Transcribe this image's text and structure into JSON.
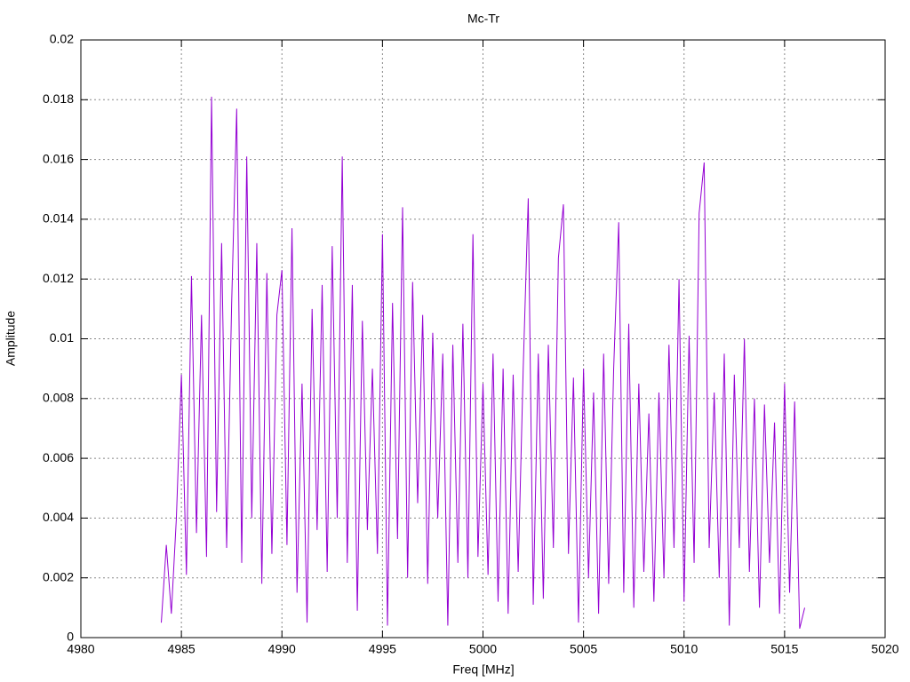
{
  "chart_data": {
    "type": "line",
    "title": "Mc-Tr",
    "x_label": "Freq [MHz]",
    "y_label": "Amplitude",
    "x": [
      4984.0,
      4984.25,
      4984.5,
      4984.75,
      4985.0,
      4985.25,
      4985.5,
      4985.75,
      4986.0,
      4986.25,
      4986.5,
      4986.75,
      4987.0,
      4987.25,
      4987.5,
      4987.75,
      4988.0,
      4988.25,
      4988.5,
      4988.75,
      4989.0,
      4989.25,
      4989.5,
      4989.75,
      4990.0,
      4990.25,
      4990.5,
      4990.75,
      4991.0,
      4991.25,
      4991.5,
      4991.75,
      4992.0,
      4992.25,
      4992.5,
      4992.75,
      4993.0,
      4993.25,
      4993.5,
      4993.75,
      4994.0,
      4994.25,
      4994.5,
      4994.75,
      4995.0,
      4995.25,
      4995.5,
      4995.75,
      4996.0,
      4996.25,
      4996.5,
      4996.75,
      4997.0,
      4997.25,
      4997.5,
      4997.75,
      4998.0,
      4998.25,
      4998.5,
      4998.75,
      4999.0,
      4999.25,
      4999.5,
      4999.75,
      5000.0,
      5000.25,
      5000.5,
      5000.75,
      5001.0,
      5001.25,
      5001.5,
      5001.75,
      5002.0,
      5002.25,
      5002.5,
      5002.75,
      5003.0,
      5003.25,
      5003.5,
      5003.75,
      5004.0,
      5004.25,
      5004.5,
      5004.75,
      5005.0,
      5005.25,
      5005.5,
      5005.75,
      5006.0,
      5006.25,
      5006.5,
      5006.75,
      5007.0,
      5007.25,
      5007.5,
      5007.75,
      5008.0,
      5008.25,
      5008.5,
      5008.75,
      5009.0,
      5009.25,
      5009.5,
      5009.75,
      5010.0,
      5010.25,
      5010.5,
      5010.75,
      5011.0,
      5011.25,
      5011.5,
      5011.75,
      5012.0,
      5012.25,
      5012.5,
      5012.75,
      5013.0,
      5013.25,
      5013.5,
      5013.75,
      5014.0,
      5014.25,
      5014.5,
      5014.75,
      5015.0,
      5015.25,
      5015.5,
      5015.75,
      5016.0
    ],
    "series": [
      {
        "color": "#9400d3",
        "values": [
          0.0005,
          0.0031,
          0.0008,
          0.004,
          0.0088,
          0.0021,
          0.0121,
          0.0035,
          0.0108,
          0.0027,
          0.0181,
          0.0042,
          0.0132,
          0.003,
          0.0112,
          0.0177,
          0.0025,
          0.0161,
          0.004,
          0.0132,
          0.0018,
          0.0122,
          0.0028,
          0.0108,
          0.0123,
          0.0031,
          0.0137,
          0.0015,
          0.0085,
          0.0005,
          0.011,
          0.0036,
          0.0118,
          0.0022,
          0.0131,
          0.004,
          0.0161,
          0.0025,
          0.0118,
          0.0009,
          0.0106,
          0.0036,
          0.009,
          0.0028,
          0.0135,
          0.0004,
          0.0112,
          0.0033,
          0.0144,
          0.002,
          0.0119,
          0.0045,
          0.0108,
          0.0018,
          0.0102,
          0.004,
          0.0095,
          0.0004,
          0.0098,
          0.0025,
          0.0105,
          0.002,
          0.0135,
          0.0027,
          0.0085,
          0.0021,
          0.0095,
          0.0012,
          0.009,
          0.0008,
          0.0088,
          0.0022,
          0.009,
          0.0147,
          0.0011,
          0.0095,
          0.0013,
          0.0098,
          0.003,
          0.0127,
          0.0145,
          0.0028,
          0.0087,
          0.0005,
          0.009,
          0.002,
          0.0082,
          0.0008,
          0.0095,
          0.0018,
          0.009,
          0.0139,
          0.0015,
          0.0105,
          0.001,
          0.0085,
          0.0022,
          0.0075,
          0.0012,
          0.0082,
          0.002,
          0.0098,
          0.003,
          0.012,
          0.0012,
          0.0101,
          0.0025,
          0.0142,
          0.0159,
          0.003,
          0.0082,
          0.002,
          0.0095,
          0.0004,
          0.0088,
          0.003,
          0.01,
          0.0022,
          0.008,
          0.001,
          0.0078,
          0.0025,
          0.0072,
          0.0008,
          0.0085,
          0.0015,
          0.0079,
          0.0003,
          0.001
        ]
      }
    ],
    "xlim": [
      4980,
      5020
    ],
    "xticks": [
      4980,
      4985,
      4990,
      4995,
      5000,
      5005,
      5010,
      5015,
      5020
    ],
    "ylim": [
      0,
      0.02
    ],
    "yticks": [
      0,
      0.002,
      0.004,
      0.006,
      0.008,
      0.01,
      0.012,
      0.014,
      0.016,
      0.018,
      0.02
    ],
    "grid": true
  }
}
